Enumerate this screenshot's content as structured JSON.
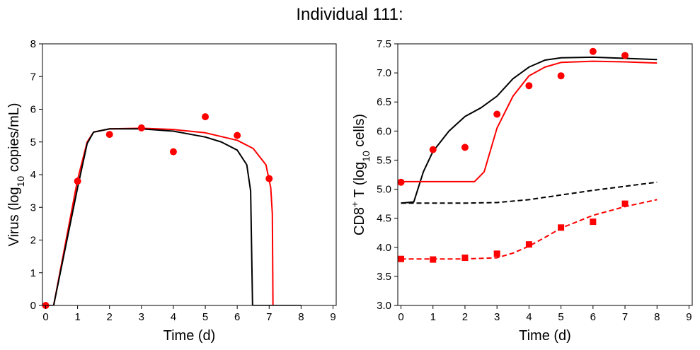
{
  "title": "Individual 111:",
  "chart_data": [
    {
      "type": "line",
      "panel": "left",
      "title": "",
      "xlabel": "Time (d)",
      "ylabel": "Virus (log10 copies/mL)",
      "ylabel_parts": {
        "before": "Virus (log",
        "sub": "10",
        "after": " copies/mL)"
      },
      "xlim": [
        -0.1,
        9.1
      ],
      "ylim": [
        0,
        8
      ],
      "xticks": [
        0,
        1,
        2,
        3,
        4,
        5,
        6,
        7,
        8,
        9
      ],
      "yticks": [
        0,
        1,
        2,
        3,
        4,
        5,
        6,
        7,
        8
      ],
      "grid": false,
      "series": [
        {
          "color": "#ff0000",
          "style": "solid",
          "points": [
            [
              0,
              0
            ],
            [
              0.25,
              0
            ],
            [
              1.0,
              3.85
            ],
            [
              1.3,
              5.0
            ],
            [
              1.5,
              5.3
            ],
            [
              2.0,
              5.4
            ],
            [
              3.0,
              5.42
            ],
            [
              4.0,
              5.38
            ],
            [
              5.0,
              5.28
            ],
            [
              6.0,
              5.05
            ],
            [
              6.5,
              4.8
            ],
            [
              6.9,
              4.3
            ],
            [
              7.05,
              3.6
            ],
            [
              7.1,
              2.8
            ],
            [
              7.12,
              0
            ],
            [
              8.0,
              0
            ]
          ]
        },
        {
          "color": "#000000",
          "style": "solid",
          "points": [
            [
              0,
              0
            ],
            [
              0.25,
              0
            ],
            [
              1.0,
              3.6
            ],
            [
              1.3,
              4.95
            ],
            [
              1.5,
              5.3
            ],
            [
              2.0,
              5.4
            ],
            [
              3.0,
              5.4
            ],
            [
              4.0,
              5.33
            ],
            [
              5.0,
              5.15
            ],
            [
              5.5,
              5.0
            ],
            [
              6.0,
              4.75
            ],
            [
              6.3,
              4.3
            ],
            [
              6.42,
              3.5
            ],
            [
              6.48,
              0
            ],
            [
              8.0,
              0
            ]
          ]
        },
        {
          "color": "#ff0000",
          "style": "markers",
          "marker": "circle",
          "points": [
            [
              0,
              0
            ],
            [
              1,
              3.8
            ],
            [
              2,
              5.23
            ],
            [
              3,
              5.43
            ],
            [
              4,
              4.7
            ],
            [
              5,
              5.77
            ],
            [
              6,
              5.2
            ],
            [
              7,
              3.88
            ]
          ]
        }
      ]
    },
    {
      "type": "line",
      "panel": "right",
      "title": "",
      "xlabel": "Time (d)",
      "ylabel": "CD8+ T (log10 cells)",
      "ylabel_parts": {
        "before": "CD8",
        "sup": "+",
        "middle": " T (log",
        "sub": "10",
        "after": " cells)"
      },
      "xlim": [
        -0.1,
        9.1
      ],
      "ylim": [
        3.0,
        7.5
      ],
      "xticks": [
        0,
        1,
        2,
        3,
        4,
        5,
        6,
        7,
        8,
        9
      ],
      "yticks": [
        3.0,
        3.5,
        4.0,
        4.5,
        5.0,
        5.5,
        6.0,
        6.5,
        7.0,
        7.5
      ],
      "ytick_labels": [
        "3.0",
        "3.5",
        "4.0",
        "4.5",
        "5.0",
        "5.5",
        "6.0",
        "6.5",
        "7.0",
        "7.5"
      ],
      "grid": false,
      "series": [
        {
          "color": "#000000",
          "style": "solid",
          "points": [
            [
              0,
              4.76
            ],
            [
              0.4,
              4.78
            ],
            [
              0.7,
              5.3
            ],
            [
              1.0,
              5.65
            ],
            [
              1.5,
              6.0
            ],
            [
              2.0,
              6.25
            ],
            [
              2.5,
              6.4
            ],
            [
              3.0,
              6.6
            ],
            [
              3.5,
              6.9
            ],
            [
              4.0,
              7.1
            ],
            [
              4.5,
              7.22
            ],
            [
              5.0,
              7.26
            ],
            [
              6.0,
              7.27
            ],
            [
              7.0,
              7.25
            ],
            [
              8.0,
              7.23
            ]
          ]
        },
        {
          "color": "#ff0000",
          "style": "solid",
          "points": [
            [
              0,
              5.13
            ],
            [
              2.3,
              5.13
            ],
            [
              2.6,
              5.3
            ],
            [
              3.0,
              6.05
            ],
            [
              3.5,
              6.6
            ],
            [
              4.0,
              6.95
            ],
            [
              4.5,
              7.1
            ],
            [
              5.0,
              7.18
            ],
            [
              6.0,
              7.2
            ],
            [
              7.0,
              7.19
            ],
            [
              8.0,
              7.17
            ]
          ]
        },
        {
          "color": "#000000",
          "style": "dashed",
          "points": [
            [
              0,
              4.76
            ],
            [
              2.0,
              4.76
            ],
            [
              3.0,
              4.77
            ],
            [
              4.0,
              4.82
            ],
            [
              5.0,
              4.9
            ],
            [
              6.0,
              4.98
            ],
            [
              7.0,
              5.05
            ],
            [
              8.0,
              5.12
            ]
          ]
        },
        {
          "color": "#ff0000",
          "style": "dashed",
          "points": [
            [
              0,
              3.8
            ],
            [
              2.0,
              3.8
            ],
            [
              3.0,
              3.82
            ],
            [
              3.5,
              3.9
            ],
            [
              4.0,
              4.02
            ],
            [
              4.5,
              4.17
            ],
            [
              5.0,
              4.33
            ],
            [
              6.0,
              4.55
            ],
            [
              7.0,
              4.7
            ],
            [
              8.0,
              4.82
            ]
          ]
        },
        {
          "color": "#ff0000",
          "style": "markers",
          "marker": "circle",
          "points": [
            [
              0,
              5.12
            ],
            [
              1,
              5.68
            ],
            [
              2,
              5.72
            ],
            [
              3,
              6.29
            ],
            [
              4,
              6.78
            ],
            [
              5,
              6.95
            ],
            [
              6,
              7.37
            ],
            [
              7,
              7.3
            ]
          ]
        },
        {
          "color": "#ff0000",
          "style": "markers",
          "marker": "square",
          "points": [
            [
              0,
              3.8
            ],
            [
              1,
              3.79
            ],
            [
              2,
              3.82
            ],
            [
              3,
              3.89
            ],
            [
              4,
              4.05
            ],
            [
              5,
              4.34
            ],
            [
              6,
              4.44
            ],
            [
              7,
              4.75
            ]
          ]
        }
      ]
    }
  ]
}
